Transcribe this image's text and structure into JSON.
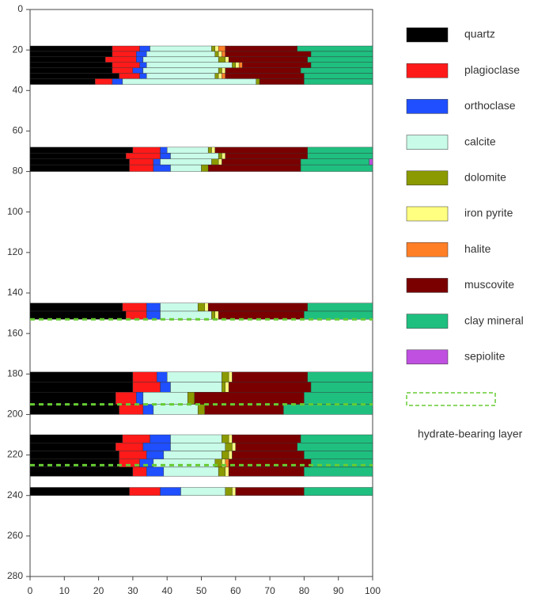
{
  "chart_data": {
    "type": "stacked_hbar",
    "yaxis_inverted": true,
    "xlim": [
      0,
      100
    ],
    "xticks": [
      0,
      10,
      20,
      30,
      40,
      50,
      60,
      70,
      80,
      90,
      100
    ],
    "ylim": [
      0,
      280
    ],
    "yticks": [
      0,
      20,
      40,
      60,
      80,
      100,
      120,
      140,
      160,
      180,
      200,
      220,
      240,
      260,
      280
    ],
    "depths": [
      [
        18,
        20.7
      ],
      [
        20.7,
        23.4
      ],
      [
        23.4,
        26.1
      ],
      [
        26.1,
        28.8
      ],
      [
        28.8,
        31.5
      ],
      [
        31.5,
        34.2
      ],
      [
        34.2,
        37
      ],
      [
        68,
        70.9
      ],
      [
        70.9,
        73.8
      ],
      [
        73.8,
        76.7
      ],
      [
        76.7,
        80
      ],
      [
        145,
        149
      ],
      [
        149,
        153
      ],
      [
        179,
        184
      ],
      [
        184,
        189
      ],
      [
        189,
        195
      ],
      [
        195,
        200
      ],
      [
        210,
        214
      ],
      [
        214,
        218
      ],
      [
        218,
        222
      ],
      [
        222,
        226
      ],
      [
        226,
        230.5
      ],
      [
        236,
        240
      ]
    ],
    "series": [
      {
        "name": "quartz",
        "color": "#000000",
        "values": [
          24,
          24,
          22,
          24,
          24,
          26,
          19,
          30,
          28,
          29,
          29,
          27,
          28,
          30,
          30,
          25,
          26,
          27,
          25,
          26,
          26,
          30,
          29
        ]
      },
      {
        "name": "plagioclase",
        "color": "#ff1a1a",
        "values": [
          8,
          7,
          9,
          8,
          6,
          6,
          5,
          8,
          10,
          7,
          7,
          7,
          6,
          7,
          8,
          6,
          7,
          8,
          8,
          8,
          6,
          4,
          9
        ]
      },
      {
        "name": "orthoclase",
        "color": "#1f4fff",
        "values": [
          3,
          3,
          2,
          2,
          3,
          2,
          3,
          2,
          3,
          2,
          5,
          4,
          4,
          3,
          3,
          2,
          3,
          6,
          8,
          5,
          4,
          5,
          6
        ]
      },
      {
        "name": "calcite",
        "color": "#c8fbe8",
        "values": [
          18,
          20,
          22,
          25,
          22,
          20,
          39,
          12,
          14,
          15,
          9,
          11,
          15,
          16,
          15,
          13,
          13,
          15,
          16,
          17,
          18,
          16,
          13
        ]
      },
      {
        "name": "dolomite",
        "color": "#8a9a00",
        "values": [
          1,
          1,
          2,
          1,
          1,
          1,
          1,
          1,
          1,
          2,
          2,
          2,
          1,
          2,
          1,
          2,
          2,
          2,
          2,
          2,
          2,
          2,
          2
        ]
      },
      {
        "name": "iron pyrite",
        "color": "#ffff80",
        "values": [
          1,
          1,
          1,
          1,
          1,
          1,
          0,
          1,
          1,
          1,
          0,
          1,
          1,
          1,
          1,
          0,
          0,
          1,
          1,
          1,
          1,
          1,
          1
        ]
      },
      {
        "name": "halite",
        "color": "#ff7f27",
        "values": [
          2,
          1,
          0,
          1,
          0,
          1,
          0,
          0,
          0,
          0,
          0,
          0,
          0,
          0,
          0,
          0,
          0,
          0,
          0,
          0,
          1,
          0,
          0
        ]
      },
      {
        "name": "muscovite",
        "color": "#7a0000",
        "values": [
          21,
          25,
          23,
          20,
          22,
          23,
          13,
          27,
          24,
          23,
          27,
          29,
          25,
          22,
          24,
          32,
          23,
          20,
          18,
          21,
          24,
          22,
          20
        ]
      },
      {
        "name": "clay mineral",
        "color": "#1fbf80",
        "values": [
          22,
          18,
          19,
          18,
          21,
          20,
          20,
          19,
          19,
          20,
          21,
          19,
          20,
          19,
          18,
          20,
          26,
          21,
          22,
          20,
          18,
          20,
          20
        ]
      },
      {
        "name": "sepiolite",
        "color": "#c050e0",
        "values": [
          0,
          0,
          0,
          0,
          0,
          0,
          0,
          0,
          0,
          1,
          0,
          0,
          0,
          0,
          0,
          0,
          0,
          0,
          0,
          0,
          0,
          0,
          0
        ]
      }
    ],
    "hydrate_layer": {
      "label": "hydrate-bearing layer",
      "color": "#66cc33",
      "depths": [
        153,
        195,
        225
      ]
    }
  }
}
